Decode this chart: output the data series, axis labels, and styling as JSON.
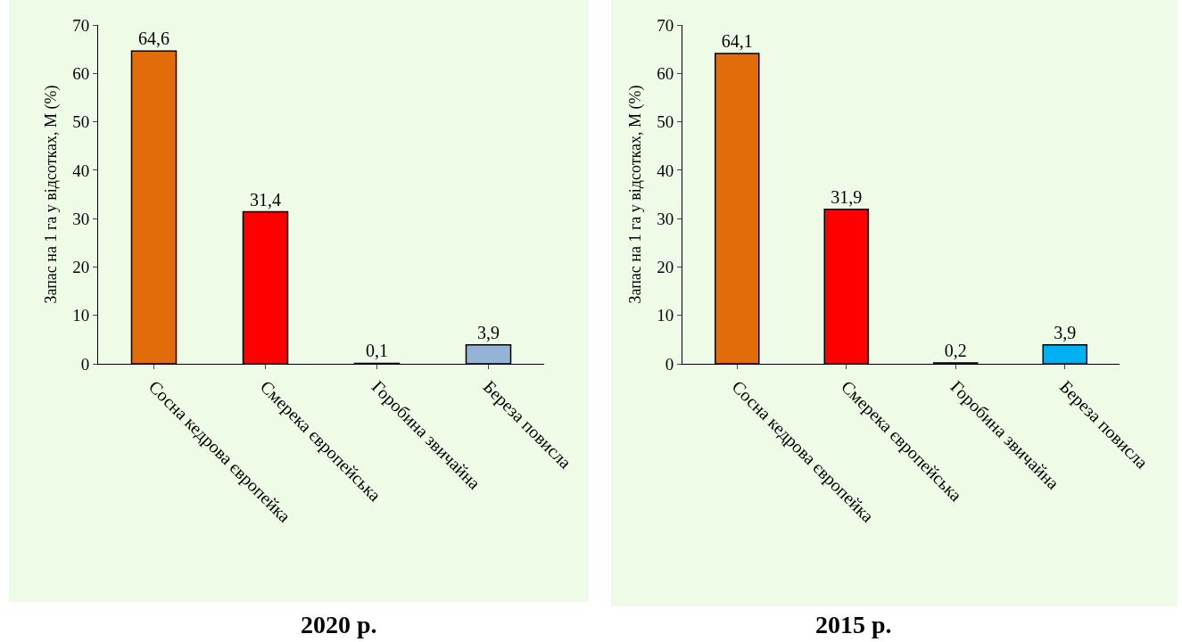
{
  "chart_data": [
    {
      "type": "bar",
      "title": "2020 р.",
      "ylabel": "Запас на 1 га у відсотках, М (%)",
      "categories": [
        "Сосна кедрова європейка",
        "Смерека європейська",
        "Горобина звичайна",
        "Береза повисла"
      ],
      "values": [
        64.6,
        31.4,
        0.1,
        3.9
      ],
      "colors": [
        "#e36c0a",
        "#ff0000",
        "#7f7f7f",
        "#95b3d7"
      ],
      "ylim": [
        0,
        70
      ],
      "yticks": [
        0,
        10,
        20,
        30,
        40,
        50,
        60,
        70
      ],
      "value_labels": [
        "64,6",
        "31,4",
        "0,1",
        "3,9"
      ]
    },
    {
      "type": "bar",
      "title": "2015 р.",
      "ylabel": "Запас на 1 га у відсотках, М (%)",
      "categories": [
        "Сосна кедрова європейка",
        "Смерека європейська",
        "Горобина звичайна",
        "Береза повисла"
      ],
      "values": [
        64.1,
        31.9,
        0.2,
        3.9
      ],
      "colors": [
        "#e36c0a",
        "#ff0000",
        "#7f7f7f",
        "#00b0f0"
      ],
      "ylim": [
        0,
        70
      ],
      "yticks": [
        0,
        10,
        20,
        30,
        40,
        50,
        60,
        70
      ],
      "value_labels": [
        "64,1",
        "31,9",
        "0,2",
        "3,9"
      ]
    }
  ]
}
